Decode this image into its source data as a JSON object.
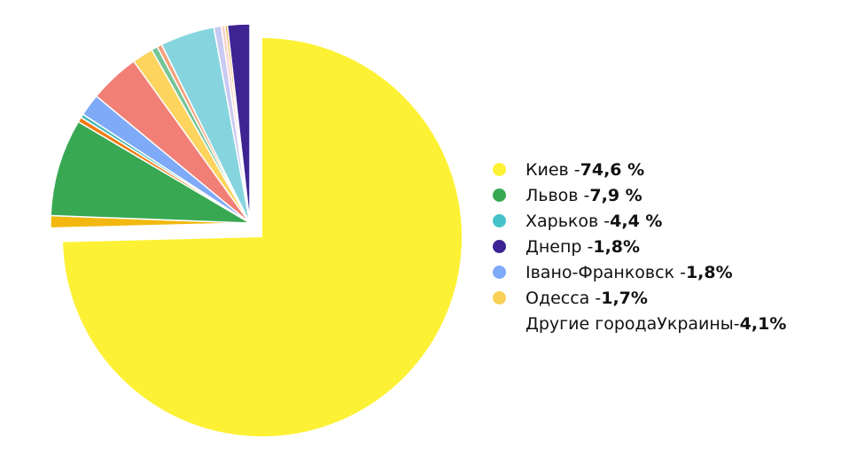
{
  "chart_data": {
    "type": "pie",
    "slices": [
      {
        "label": "Киев",
        "value": 74.6,
        "color": "#FDF135",
        "exploded": true
      },
      {
        "label": "",
        "value": 1.0,
        "color": "#F2B80F"
      },
      {
        "label": "Львов",
        "value": 7.9,
        "color": "#38A853"
      },
      {
        "label": "",
        "value": 0.4,
        "color": "#F47A10"
      },
      {
        "label": "",
        "value": 0.3,
        "color": "#46B8B8"
      },
      {
        "label": "Іваво-Франковск",
        "value": 1.8,
        "color": "#7EAAF7"
      },
      {
        "label": "",
        "value": 4.1,
        "color": "#F17F76"
      },
      {
        "label": "Одесса",
        "value": 1.7,
        "color": "#FCD45E"
      },
      {
        "label": "",
        "value": 0.5,
        "color": "#76C596"
      },
      {
        "label": "",
        "value": 0.4,
        "color": "#F5A07A"
      },
      {
        "label": "Харьков",
        "value": 4.4,
        "color": "#86D4DE"
      },
      {
        "label": "",
        "value": 0.6,
        "color": "#C8CAF2"
      },
      {
        "label": "",
        "value": 0.3,
        "color": "#F9D0C8"
      },
      {
        "label": "",
        "value": 0.2,
        "color": "#F4A63A"
      },
      {
        "label": "Днепр",
        "value": 1.8,
        "color": "#3E2393"
      }
    ],
    "legend_position": "right"
  },
  "legend": [
    {
      "name": "Киев  - ",
      "value": "74,6 %",
      "color": "#FDF135"
    },
    {
      "name": "Львов - ",
      "value": "7,9 %",
      "color": "#38A853"
    },
    {
      "name": "Харьков - ",
      "value": "4,4 %",
      "color": "#46C3C8"
    },
    {
      "name": "Днепр - ",
      "value": "1,8%",
      "color": "#3E2393"
    },
    {
      "name": "Івано-Франковск - ",
      "value": "1,8%",
      "color": "#7EAAF7"
    },
    {
      "name": "Одесса - ",
      "value": "1,7%",
      "color": "#F9D156"
    },
    {
      "name": "Другие городаУкраины- ",
      "value": "4,1%",
      "color": ""
    }
  ]
}
